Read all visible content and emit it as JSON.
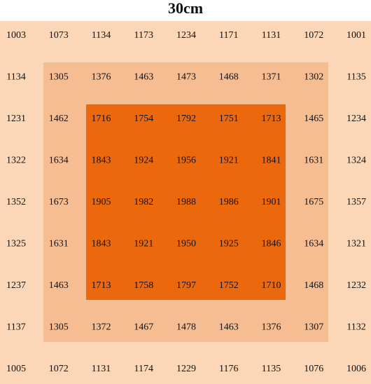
{
  "title": "30cm",
  "grid": {
    "rows": [
      [
        1003,
        1073,
        1134,
        1173,
        1234,
        1171,
        1131,
        1072,
        1001
      ],
      [
        1134,
        1305,
        1376,
        1463,
        1473,
        1468,
        1371,
        1302,
        1135
      ],
      [
        1231,
        1462,
        1716,
        1754,
        1792,
        1751,
        1713,
        1465,
        1234
      ],
      [
        1322,
        1634,
        1843,
        1924,
        1956,
        1921,
        1841,
        1631,
        1324
      ],
      [
        1352,
        1673,
        1905,
        1982,
        1988,
        1986,
        1901,
        1675,
        1357
      ],
      [
        1325,
        1631,
        1843,
        1921,
        1950,
        1925,
        1846,
        1634,
        1321
      ],
      [
        1237,
        1463,
        1713,
        1758,
        1797,
        1752,
        1710,
        1468,
        1232
      ],
      [
        1137,
        1305,
        1372,
        1467,
        1478,
        1463,
        1376,
        1307,
        1132
      ],
      [
        1005,
        1072,
        1131,
        1174,
        1229,
        1176,
        1135,
        1076,
        1006
      ]
    ]
  }
}
